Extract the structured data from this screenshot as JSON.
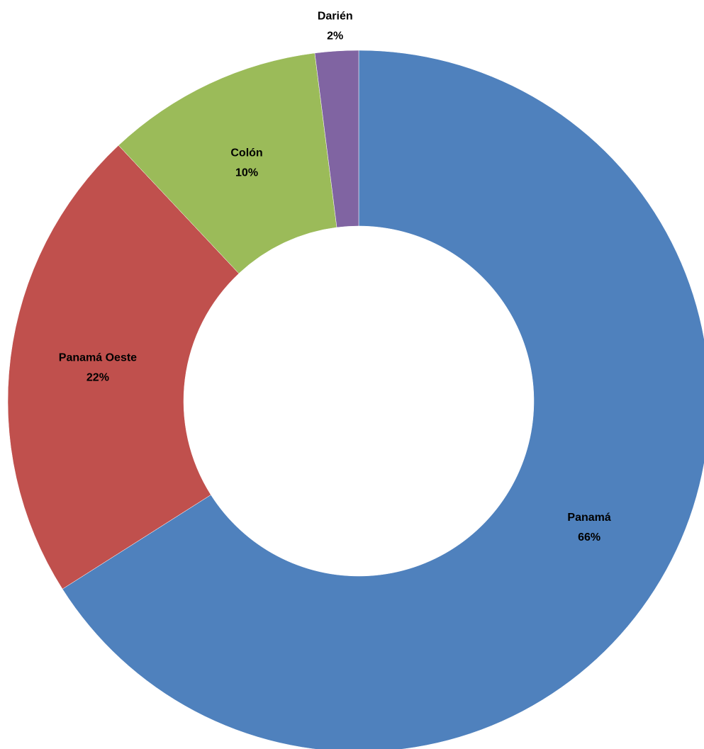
{
  "chart_data": {
    "type": "donut",
    "categories": [
      "Panamá",
      "Panamá Oeste",
      "Colón",
      "Darién"
    ],
    "values": [
      66,
      22,
      10,
      2
    ],
    "value_labels": [
      "66%",
      "22%",
      "10%",
      "2%"
    ],
    "colors": [
      "#4f81bd",
      "#c0504d",
      "#9bbb59",
      "#8064a2"
    ]
  }
}
